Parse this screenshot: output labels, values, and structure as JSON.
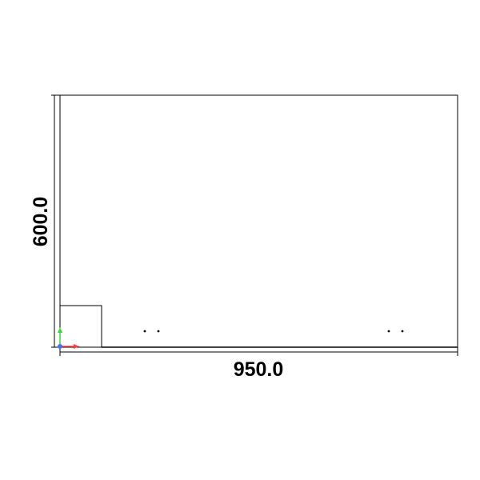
{
  "dimensions": {
    "width_label": "950.0",
    "height_label": "600.0"
  },
  "axis_indicator": {
    "x_color": "#ff4040",
    "y_color": "#33dd33",
    "origin_color": "#4a6cff"
  },
  "icons": {
    "origin": "axis-triad-icon"
  }
}
